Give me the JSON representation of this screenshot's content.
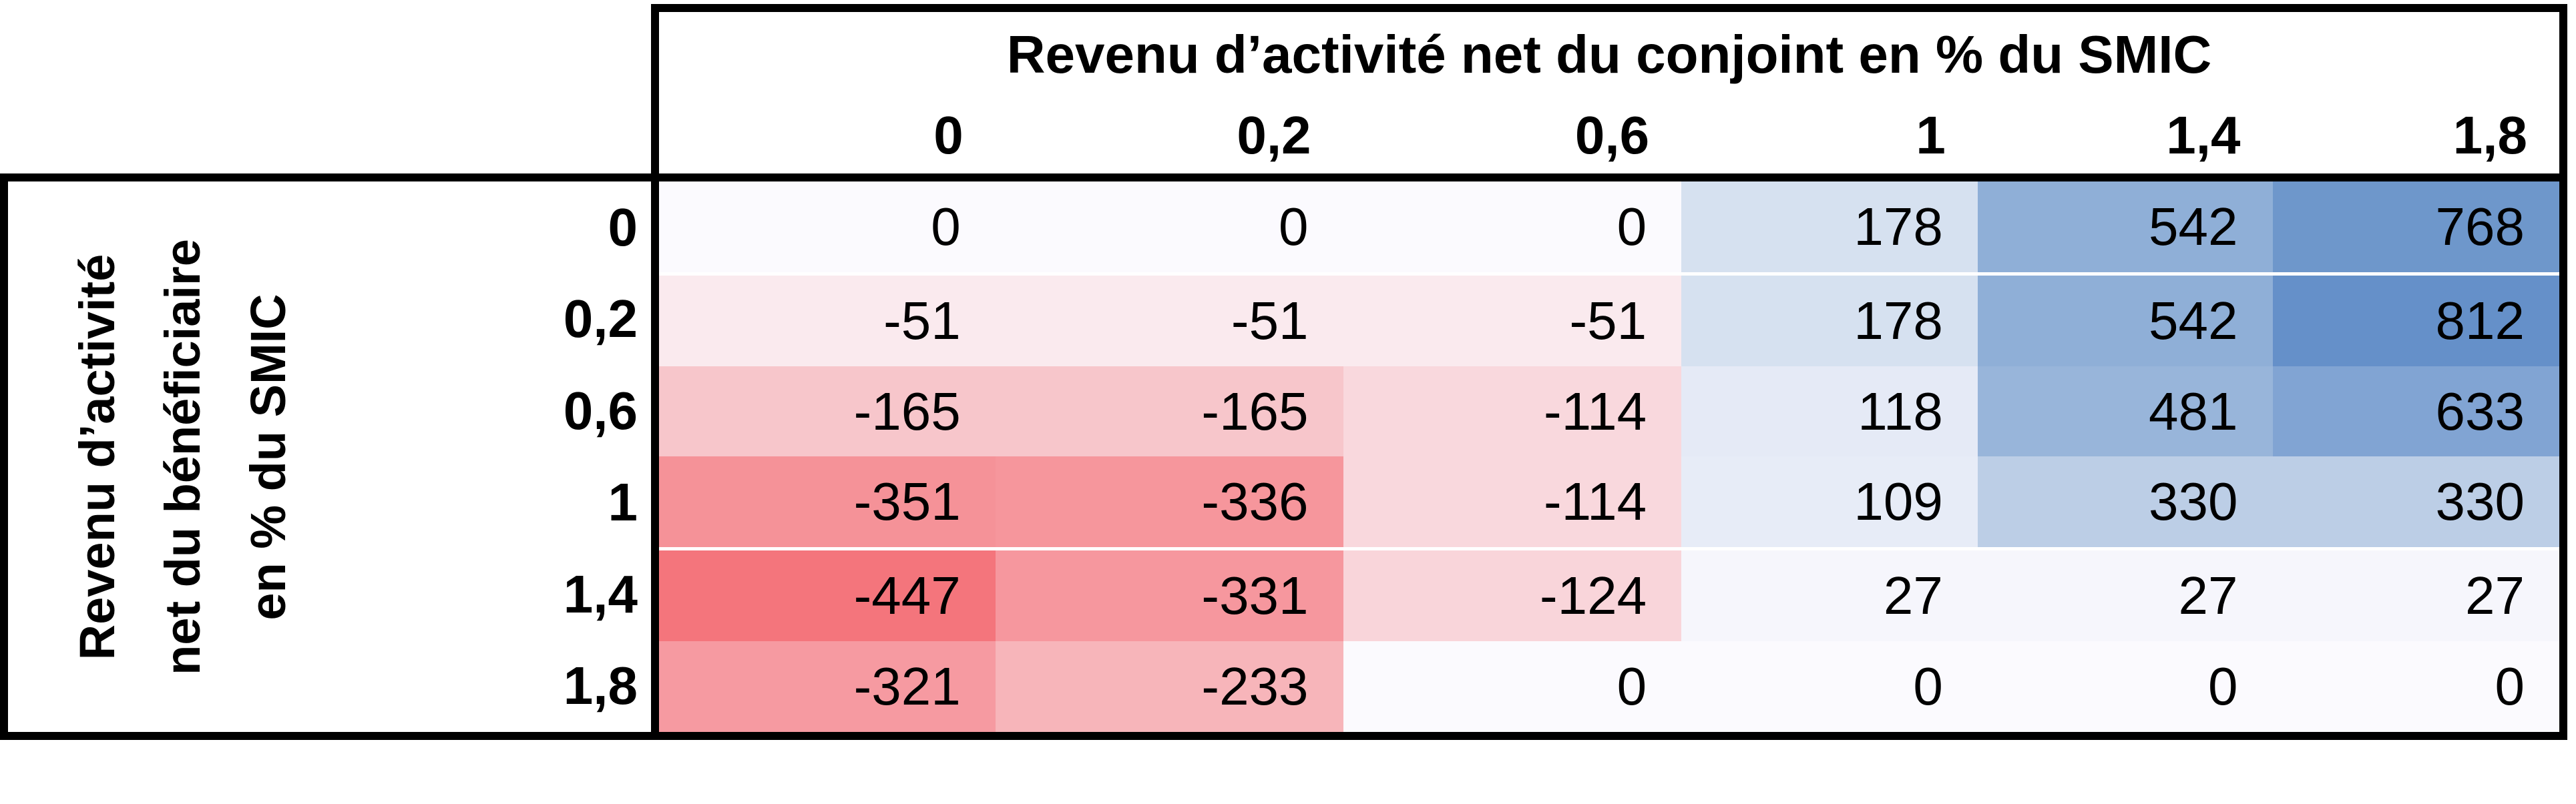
{
  "chart_data": {
    "type": "heatmap",
    "title": "Revenu d’activité net du conjoint en % du SMIC",
    "row_axis_title_lines": [
      "Revenu d’activité",
      "net du bénéficiaire",
      "en % du SMIC"
    ],
    "col_labels": [
      "0",
      "0,2",
      "0,6",
      "1",
      "1,4",
      "1,8"
    ],
    "row_labels": [
      "0",
      "0,2",
      "0,6",
      "1",
      "1,4",
      "1,8"
    ],
    "x_values": [
      0,
      0.2,
      0.6,
      1,
      1.4,
      1.8
    ],
    "y_values": [
      0,
      0.2,
      0.6,
      1,
      1.4,
      1.8
    ],
    "values": [
      [
        0,
        0,
        0,
        178,
        542,
        768
      ],
      [
        -51,
        -51,
        -51,
        178,
        542,
        812
      ],
      [
        -165,
        -165,
        -114,
        118,
        481,
        633
      ],
      [
        -351,
        -336,
        -114,
        109,
        330,
        330
      ],
      [
        -447,
        -331,
        -124,
        27,
        27,
        27
      ],
      [
        -321,
        -233,
        0,
        0,
        0,
        0
      ]
    ],
    "cell_colors": [
      [
        "#fbfafe",
        "#fbfafe",
        "#fbfafe",
        "#d6e1f0",
        "#8fafd7",
        "#6e97cb"
      ],
      [
        "#faeaee",
        "#faeaee",
        "#faeaee",
        "#d6e1f0",
        "#8fafd7",
        "#6590c9"
      ],
      [
        "#f7c6cb",
        "#f7c6cb",
        "#f9d8dd",
        "#e5eaf6",
        "#98b5da",
        "#81a4d3"
      ],
      [
        "#f59298",
        "#f6969c",
        "#f9d8dd",
        "#e7ecf7",
        "#bccee6",
        "#bccee6"
      ],
      [
        "#f4757c",
        "#f6979e",
        "#f9d5da",
        "#f6f6fc",
        "#f6f6fc",
        "#f6f6fc"
      ],
      [
        "#f69aa1",
        "#f7b5ba",
        "#fbfafe",
        "#fbfafe",
        "#fbfafe",
        "#fbfafe"
      ]
    ],
    "colorscale": {
      "kind": "3-color",
      "min": {
        "value": -447,
        "color": "#f8696b"
      },
      "mid": {
        "value": 0,
        "color": "#fcfcff"
      },
      "max": {
        "value": 812,
        "color": "#5a8ac6"
      }
    },
    "white_rule_after_rows": [
      0,
      3
    ],
    "legend_position": "none",
    "grid": "off"
  },
  "style": {
    "border_color": "#000000",
    "text_color": "#000000",
    "background": "#ffffff",
    "row_separator_color": "#ffffff"
  }
}
